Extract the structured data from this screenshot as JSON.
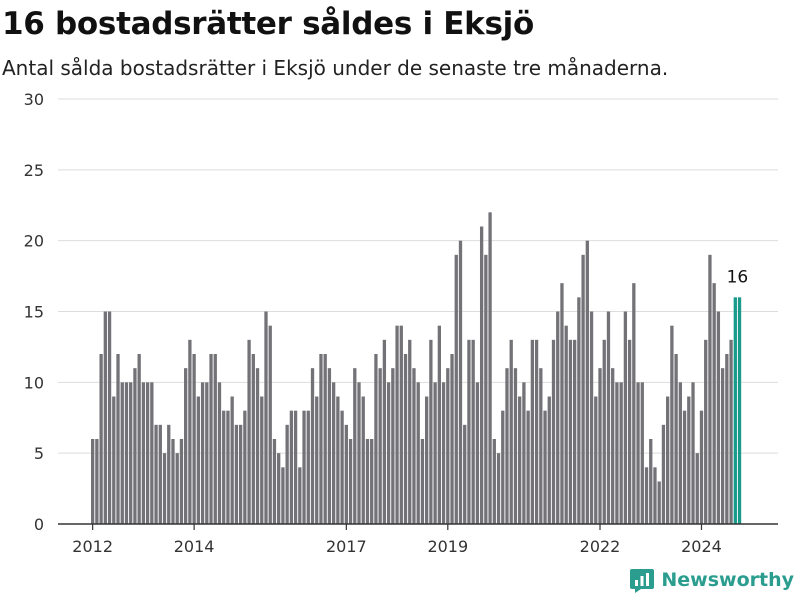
{
  "header": {
    "title": "16 bostadsrätter såldes i Eksjö",
    "subtitle": "Antal sålda bostadsrätter i Eksjö under de senaste tre månaderna."
  },
  "brand": {
    "name": "Newsworthy"
  },
  "colors": {
    "bar": "#737277",
    "highlight": "#1a9a8a",
    "grid": "#dddddd",
    "axis": "#333333"
  },
  "chart_data": {
    "type": "bar",
    "ylim": [
      0,
      30
    ],
    "yticks": [
      "0",
      "5",
      "10",
      "15",
      "20",
      "25",
      "30"
    ],
    "xticks": [
      {
        "label": "2012",
        "index": 0
      },
      {
        "label": "2014",
        "index": 24
      },
      {
        "label": "2017",
        "index": 60
      },
      {
        "label": "2019",
        "index": 84
      },
      {
        "label": "2022",
        "index": 120
      },
      {
        "label": "2024",
        "index": 144
      }
    ],
    "grid": true,
    "values": [
      6,
      6,
      12,
      15,
      15,
      9,
      12,
      10,
      10,
      10,
      11,
      12,
      10,
      10,
      10,
      7,
      7,
      5,
      7,
      6,
      5,
      6,
      11,
      13,
      12,
      9,
      10,
      10,
      12,
      12,
      10,
      8,
      8,
      9,
      7,
      7,
      8,
      13,
      12,
      11,
      9,
      15,
      14,
      6,
      5,
      4,
      7,
      8,
      8,
      4,
      8,
      8,
      11,
      9,
      12,
      12,
      11,
      10,
      9,
      8,
      7,
      6,
      11,
      10,
      9,
      6,
      6,
      12,
      11,
      13,
      10,
      11,
      14,
      14,
      12,
      13,
      11,
      10,
      6,
      9,
      13,
      10,
      14,
      10,
      11,
      12,
      19,
      20,
      7,
      13,
      13,
      10,
      21,
      19,
      22,
      6,
      5,
      8,
      11,
      13,
      11,
      9,
      10,
      8,
      13,
      13,
      11,
      8,
      9,
      13,
      15,
      17,
      14,
      13,
      13,
      16,
      19,
      20,
      15,
      9,
      11,
      13,
      15,
      11,
      10,
      10,
      15,
      13,
      17,
      10,
      10,
      4,
      6,
      4,
      3,
      7,
      9,
      14,
      12,
      10,
      8,
      9,
      10,
      5,
      8,
      13,
      19,
      17,
      15,
      11,
      12,
      13,
      16,
      16
    ],
    "highlight_last": 2,
    "annotation": {
      "text": "16"
    }
  }
}
